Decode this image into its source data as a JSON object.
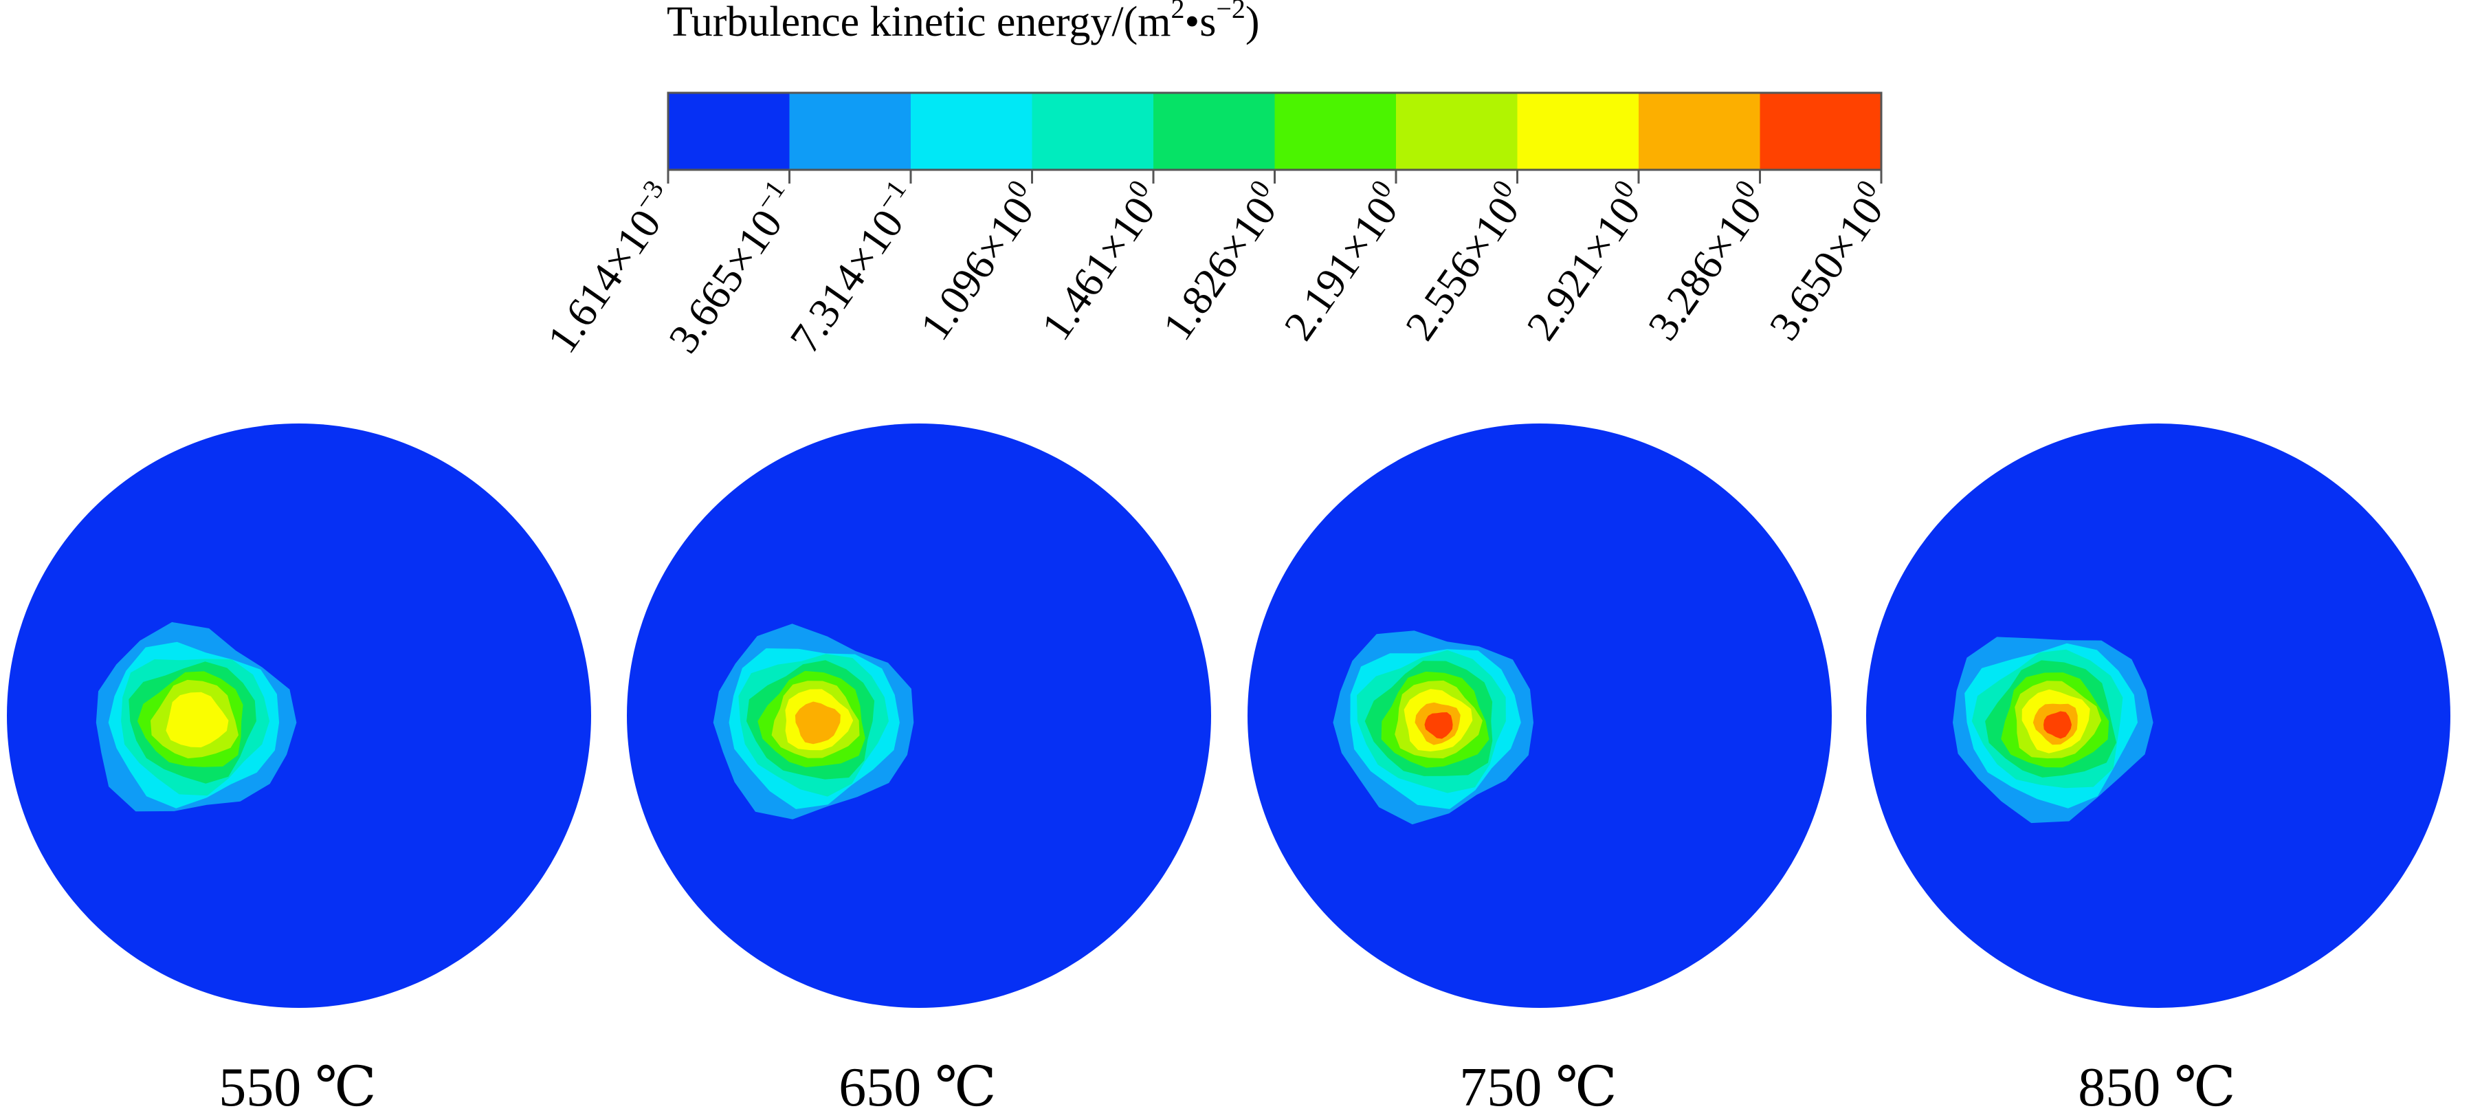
{
  "chart_data": {
    "type": "heatmap",
    "colorbar": {
      "title_main": "Turbulence kinetic energy/(m",
      "title_sup1": "2",
      "title_mid": "•s",
      "title_sup2": "−2",
      "title_end": ")",
      "colors": [
        "#0630F4",
        "#0F9CF6",
        "#00E8F6",
        "#00ECBE",
        "#06E266",
        "#4BF400",
        "#B1F401",
        "#FAFE00",
        "#FCAF00",
        "#FF4200"
      ],
      "ticks": [
        {
          "mantissa": "1.614×10",
          "exponent": "−3",
          "value": 0.001614
        },
        {
          "mantissa": "3.665×10",
          "exponent": "−1",
          "value": 0.3665
        },
        {
          "mantissa": "7.314×10",
          "exponent": "−1",
          "value": 0.7314
        },
        {
          "mantissa": "1.096×10",
          "exponent": "0",
          "value": 1.096
        },
        {
          "mantissa": "1.461×10",
          "exponent": "0",
          "value": 1.461
        },
        {
          "mantissa": "1.826×10",
          "exponent": "0",
          "value": 1.826
        },
        {
          "mantissa": "2.191×10",
          "exponent": "0",
          "value": 2.191
        },
        {
          "mantissa": "2.556×10",
          "exponent": "0",
          "value": 2.556
        },
        {
          "mantissa": "2.921×10",
          "exponent": "0",
          "value": 2.921
        },
        {
          "mantissa": "3.286×10",
          "exponent": "0",
          "value": 3.286
        },
        {
          "mantissa": "3.650×10",
          "exponent": "0",
          "value": 3.65
        }
      ]
    },
    "panels": [
      {
        "label": "550 ℃",
        "max_level": 8
      },
      {
        "label": "650 ℃",
        "max_level": 9
      },
      {
        "label": "750 ℃",
        "max_level": 10
      },
      {
        "label": "850 ℃",
        "max_level": 10
      }
    ]
  }
}
